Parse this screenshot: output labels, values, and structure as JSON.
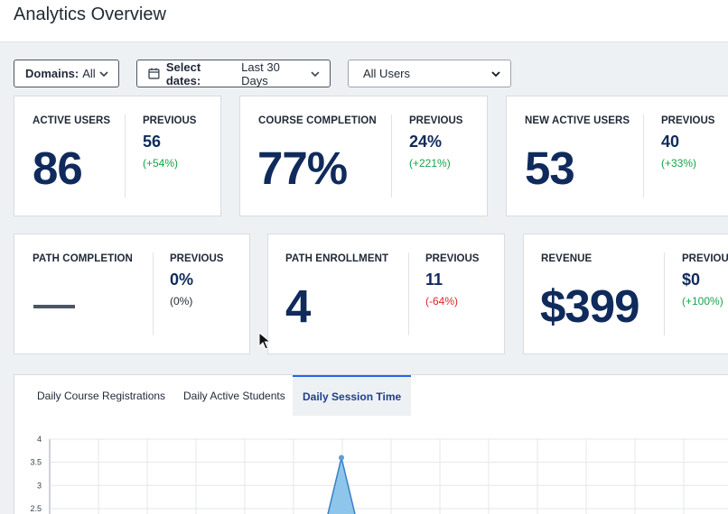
{
  "header": {
    "title": "Analytics Overview"
  },
  "filters": {
    "domains": {
      "key": "Domains:",
      "value": "All"
    },
    "dates": {
      "key": "Select dates:",
      "value": "Last 30 Days"
    },
    "users": {
      "value": "All Users"
    }
  },
  "previous_label": "PREVIOUS",
  "metrics": [
    {
      "label": "ACTIVE USERS",
      "value": "86",
      "previous": "56",
      "delta": "(+54%)",
      "trend": "up"
    },
    {
      "label": "COURSE COMPLETION",
      "value": "77%",
      "previous": "24%",
      "delta": "(+221%)",
      "trend": "up"
    },
    {
      "label": "NEW ACTIVE USERS",
      "value": "53",
      "previous": "40",
      "delta": "(+33%)",
      "trend": "up"
    },
    {
      "label": "PATH COMPLETION",
      "value": "—",
      "previous": "0%",
      "delta": "(0%)",
      "trend": "flat"
    },
    {
      "label": "PATH ENROLLMENT",
      "value": "4",
      "previous": "11",
      "delta": "(-64%)",
      "trend": "down"
    },
    {
      "label": "REVENUE",
      "value": "$399",
      "previous": "$0",
      "delta": "(+100%)",
      "trend": "up"
    }
  ],
  "chart": {
    "tabs": [
      "Daily Course Registrations",
      "Daily Active Students",
      "Daily Session Time"
    ],
    "active_tab": 2,
    "chart_data": {
      "type": "area",
      "y_ticks": [
        "4",
        "3.5",
        "3",
        "2.5"
      ],
      "ylim": [
        2.5,
        4
      ],
      "peak_value": 3.6,
      "color": "#8ec5ea"
    }
  },
  "colors": {
    "accent": "#2563eb",
    "value_text": "#102a5c",
    "positive": "#16a34a",
    "negative": "#dc2626"
  }
}
